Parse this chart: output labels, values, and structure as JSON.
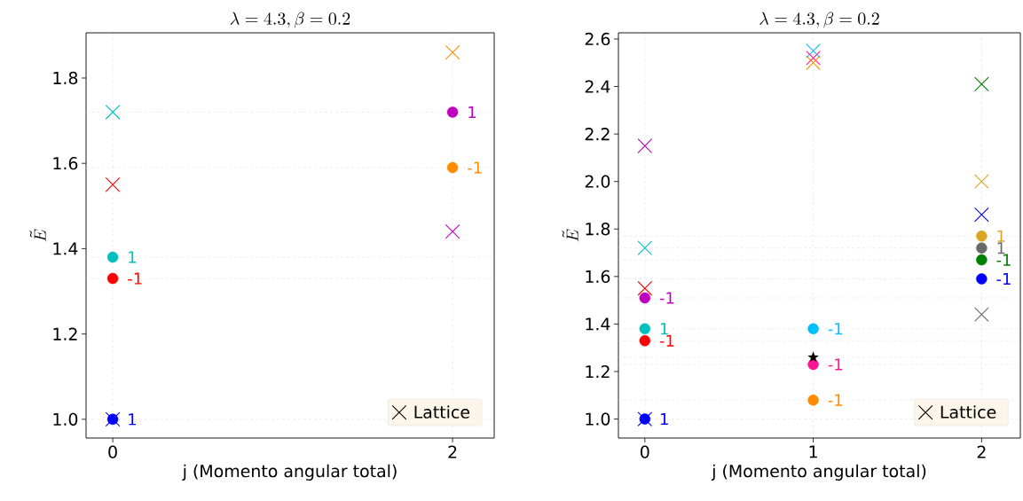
{
  "chart_data": [
    {
      "type": "scatter",
      "title": "\\lambda = 4.3, \\beta = 0.2",
      "xlabel": "j (Momento angular total)",
      "ylabel": "\\tilde{E}",
      "xlim": [
        -0.157,
        2.245
      ],
      "ylim": [
        0.956,
        1.906
      ],
      "xticks": [
        0,
        2
      ],
      "yticks": [
        {
          "value": 1.0,
          "label": "1.0"
        },
        {
          "value": 1.2,
          "label": "1.2"
        },
        {
          "value": 1.4,
          "label": "1.4"
        },
        {
          "value": 1.6,
          "label": "1.6"
        },
        {
          "value": 1.8,
          "label": "1.8"
        }
      ],
      "grid": "x",
      "legend": "bottom right",
      "ref_lines": [
        {
          "axis": "y",
          "value": 1.72,
          "color": "#e0e0e0",
          "line_style": "dashed"
        },
        {
          "axis": "y",
          "value": 1.59,
          "color": "#e0e0e0",
          "line_style": "dashed"
        },
        {
          "axis": "y",
          "value": 1.38,
          "color": "#e0e0e0",
          "line_style": "dashed"
        },
        {
          "axis": "y",
          "value": 1.33,
          "color": "#e0e0e0",
          "line_style": "dashed"
        },
        {
          "axis": "y",
          "value": 1.0,
          "color": "#e0e0e0",
          "line_style": "dashed"
        }
      ],
      "series": [
        {
          "name": "Lattice",
          "marker": "cross",
          "color": "#000000",
          "colors": [
            "#00bfbf",
            "#ff0000",
            "#0000ff",
            "#ff8c00",
            "#bf00bf"
          ],
          "x": [
            0,
            0,
            0,
            2,
            2
          ],
          "values": [
            1.72,
            1.55,
            1.0,
            1.86,
            1.44
          ]
        },
        {
          "marker": "circle",
          "colors": [
            "#00bfbf",
            "#ff0000",
            "#0000ff",
            "#bf00bf",
            "#ff8c00"
          ],
          "x": [
            0,
            0,
            0,
            2,
            2
          ],
          "values": [
            1.38,
            1.33,
            1.0,
            1.72,
            1.59
          ]
        }
      ],
      "annotations": [
        {
          "text": "1",
          "x": 0,
          "y": 1.38
        },
        {
          "text": "-1",
          "x": 0,
          "y": 1.33
        },
        {
          "text": "1",
          "x": 0,
          "y": 1.0
        },
        {
          "text": "1",
          "x": 2,
          "y": 1.72
        },
        {
          "text": "-1",
          "x": 2,
          "y": 1.59
        }
      ]
    },
    {
      "type": "scatter",
      "title": "\\lambda = 4.3, \\beta = 0.2",
      "xlabel": "j (Momento angular total)",
      "ylabel": "\\tilde{E}",
      "xlim": [
        -0.157,
        2.23
      ],
      "ylim": [
        0.92,
        2.626
      ],
      "xticks": [
        0,
        1,
        2
      ],
      "yticks": [
        {
          "value": 1.0,
          "label": "1.0"
        },
        {
          "value": 1.2,
          "label": "1.2"
        },
        {
          "value": 1.4,
          "label": "1.4"
        },
        {
          "value": 1.6,
          "label": "1.6"
        },
        {
          "value": 1.8,
          "label": "1.8"
        },
        {
          "value": 2.0,
          "label": "2.0"
        },
        {
          "value": 2.2,
          "label": "2.2"
        },
        {
          "value": 2.4,
          "label": "2.4"
        },
        {
          "value": 2.6,
          "label": "2.6"
        }
      ],
      "grid": "x",
      "legend": "bottom right",
      "ref_lines": [
        {
          "axis": "y",
          "value": 1.77,
          "color": "#e0e0e0",
          "line_style": "dashed"
        },
        {
          "axis": "y",
          "value": 1.72,
          "color": "#e0e0e0",
          "line_style": "dashed"
        },
        {
          "axis": "y",
          "value": 1.67,
          "color": "#e0e0e0",
          "line_style": "dashed"
        },
        {
          "axis": "y",
          "value": 1.59,
          "color": "#e0e0e0",
          "line_style": "dashed"
        },
        {
          "axis": "y",
          "value": 1.51,
          "color": "#e0e0e0",
          "line_style": "dashed"
        },
        {
          "axis": "y",
          "value": 1.38,
          "color": "#e0e0e0",
          "line_style": "dashed"
        },
        {
          "axis": "y",
          "value": 1.33,
          "color": "#e0e0e0",
          "line_style": "dashed"
        },
        {
          "axis": "y",
          "value": 1.26,
          "color": "#e0e0e0",
          "line_style": "dashed"
        },
        {
          "axis": "y",
          "value": 1.23,
          "color": "#e0e0e0",
          "line_style": "dashed"
        },
        {
          "axis": "y",
          "value": 1.08,
          "color": "#e0e0e0",
          "line_style": "dashed"
        },
        {
          "axis": "y",
          "value": 1.0,
          "color": "#e0e0e0",
          "line_style": "dashed"
        }
      ],
      "series": [
        {
          "name": "Lattice",
          "marker": "cross",
          "color": "#000000",
          "colors": [
            "#bf00bf",
            "#00bfbf",
            "#ff0000",
            "#0000ff",
            "#00bfff",
            "#ff1493",
            "#ff8c00",
            "#008000",
            "#daa520",
            "#0000ff",
            "#696969"
          ],
          "x": [
            0,
            0,
            0,
            0,
            1,
            1,
            1,
            2,
            2,
            2,
            2
          ],
          "values": [
            2.15,
            1.72,
            1.55,
            1.0,
            2.55,
            2.52,
            2.5,
            2.41,
            2.0,
            1.86,
            1.44
          ]
        },
        {
          "marker": "circle",
          "colors": [
            "#bf00bf",
            "#00bfbf",
            "#ff0000",
            "#0000ff",
            "#00bfff",
            "#ff1493",
            "#ff8c00",
            "#daa520",
            "#696969",
            "#008000",
            "#0000ff"
          ],
          "x": [
            0,
            0,
            0,
            0,
            1,
            1,
            1,
            2,
            2,
            2,
            2
          ],
          "values": [
            1.51,
            1.38,
            1.33,
            1.0,
            1.38,
            1.23,
            1.08,
            1.77,
            1.72,
            1.67,
            1.59
          ]
        },
        {
          "marker": "star",
          "color": "#000000",
          "x": [
            1
          ],
          "values": [
            1.26
          ]
        }
      ],
      "annotations": [
        {
          "text": "-1",
          "x": 0,
          "y": 1.51
        },
        {
          "text": "1",
          "x": 0,
          "y": 1.38
        },
        {
          "text": "-1",
          "x": 0,
          "y": 1.33
        },
        {
          "text": "1",
          "x": 0,
          "y": 1.0
        },
        {
          "text": "-1",
          "x": 1,
          "y": 1.38
        },
        {
          "text": "-1",
          "x": 1,
          "y": 1.23
        },
        {
          "text": "-1",
          "x": 1,
          "y": 1.08
        },
        {
          "text": "1",
          "x": 2,
          "y": 1.77
        },
        {
          "text": "1",
          "x": 2,
          "y": 1.72
        },
        {
          "text": "-1",
          "x": 2,
          "y": 1.67
        },
        {
          "text": "-1",
          "x": 2,
          "y": 1.59
        }
      ]
    }
  ]
}
